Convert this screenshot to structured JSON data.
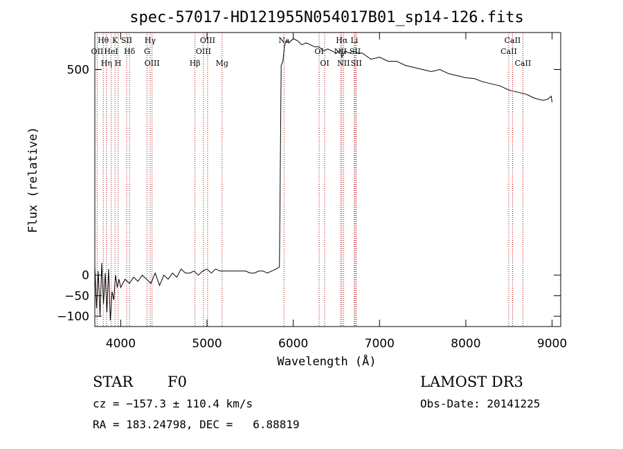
{
  "chart_data": {
    "type": "line",
    "title": "spec-57017-HD121955N054017B01_sp14-126.fits",
    "xlabel": "Wavelength (Å)",
    "ylabel": "Flux (relative)",
    "xlim": [
      3700,
      9100
    ],
    "ylim": [
      -125,
      590
    ],
    "x_ticks": [
      4000,
      5000,
      6000,
      7000,
      8000,
      9000
    ],
    "x_tick_labels": [
      "4000",
      "5000",
      "6000",
      "7000",
      "8000",
      "9000"
    ],
    "y_ticks": [
      500,
      0,
      -50,
      -100
    ],
    "y_tick_labels": [
      "500",
      "0",
      "−50",
      "−100"
    ],
    "series": [
      {
        "name": "spectrum",
        "x": [
          3700,
          3720,
          3740,
          3760,
          3780,
          3800,
          3820,
          3840,
          3860,
          3880,
          3900,
          3920,
          3940,
          3960,
          3980,
          4000,
          4050,
          4100,
          4150,
          4200,
          4250,
          4300,
          4350,
          4400,
          4450,
          4500,
          4550,
          4600,
          4650,
          4700,
          4750,
          4800,
          4850,
          4900,
          4950,
          5000,
          5050,
          5100,
          5150,
          5200,
          5300,
          5400,
          5450,
          5500,
          5550,
          5600,
          5650,
          5700,
          5750,
          5800,
          5840,
          5860,
          5880,
          5900,
          5920,
          5950,
          6000,
          6050,
          6100,
          6150,
          6200,
          6250,
          6300,
          6350,
          6400,
          6450,
          6500,
          6550,
          6563,
          6600,
          6650,
          6700,
          6750,
          6800,
          6900,
          7000,
          7100,
          7200,
          7300,
          7400,
          7500,
          7600,
          7700,
          7800,
          7900,
          8000,
          8100,
          8200,
          8300,
          8400,
          8500,
          8600,
          8700,
          8800,
          8900,
          8950,
          8990,
          9000
        ],
        "y": [
          20,
          -80,
          10,
          -100,
          30,
          -70,
          5,
          -90,
          15,
          -110,
          -40,
          -60,
          0,
          -30,
          -10,
          -30,
          -10,
          -20,
          -5,
          -15,
          0,
          -10,
          -20,
          5,
          -25,
          0,
          -10,
          5,
          -5,
          15,
          5,
          5,
          10,
          0,
          10,
          15,
          5,
          15,
          10,
          10,
          10,
          10,
          10,
          5,
          5,
          10,
          10,
          5,
          10,
          15,
          20,
          510,
          520,
          560,
          570,
          565,
          575,
          570,
          560,
          565,
          560,
          555,
          555,
          545,
          550,
          545,
          540,
          548,
          530,
          545,
          540,
          545,
          540,
          540,
          525,
          530,
          520,
          520,
          510,
          505,
          500,
          495,
          500,
          490,
          485,
          480,
          478,
          470,
          465,
          460,
          450,
          445,
          440,
          430,
          425,
          428,
          435,
          420
        ]
      }
    ],
    "spectral_lines": [
      {
        "label": "Hθ",
        "x": 3798
      },
      {
        "label": "OII",
        "x": 3727
      },
      {
        "label": "Hη",
        "x": 3835
      },
      {
        "label": "K",
        "x": 3934
      },
      {
        "label": "HeI",
        "x": 3889
      },
      {
        "label": "H",
        "x": 3969
      },
      {
        "label": "SII",
        "x": 4069
      },
      {
        "label": "Hδ",
        "x": 4102
      },
      {
        "label": "OIII",
        "x": 4363
      },
      {
        "label": "Hγ",
        "x": 4341
      },
      {
        "label": "G",
        "x": 4305
      },
      {
        "label": "Hβ",
        "x": 4861
      },
      {
        "label": "OIII",
        "x": 5007
      },
      {
        "label": "OIII",
        "x": 4959
      },
      {
        "label": "Mg",
        "x": 5175
      },
      {
        "label": "Na",
        "x": 5893
      },
      {
        "label": "OI",
        "x": 6300
      },
      {
        "label": "OI",
        "x": 6364
      },
      {
        "label": "Hα",
        "x": 6563
      },
      {
        "label": "SII",
        "x": 6717
      },
      {
        "label": "NII",
        "x": 6583
      },
      {
        "label": "Li",
        "x": 6708
      },
      {
        "label": "NII",
        "x": 6548
      },
      {
        "label": "SII",
        "x": 6731
      },
      {
        "label": "CaII",
        "x": 8542
      },
      {
        "label": "CaII",
        "x": 8498
      },
      {
        "label": "CaII",
        "x": 8662
      }
    ]
  },
  "footer": {
    "object_type": "STAR",
    "subclass": "F0",
    "survey": "LAMOST DR3",
    "cz": "cz = −157.3 ± 110.4 km/s",
    "obs_date": "Obs-Date: 20141225",
    "coords": "RA = 183.24798, DEC =   6.88819"
  }
}
